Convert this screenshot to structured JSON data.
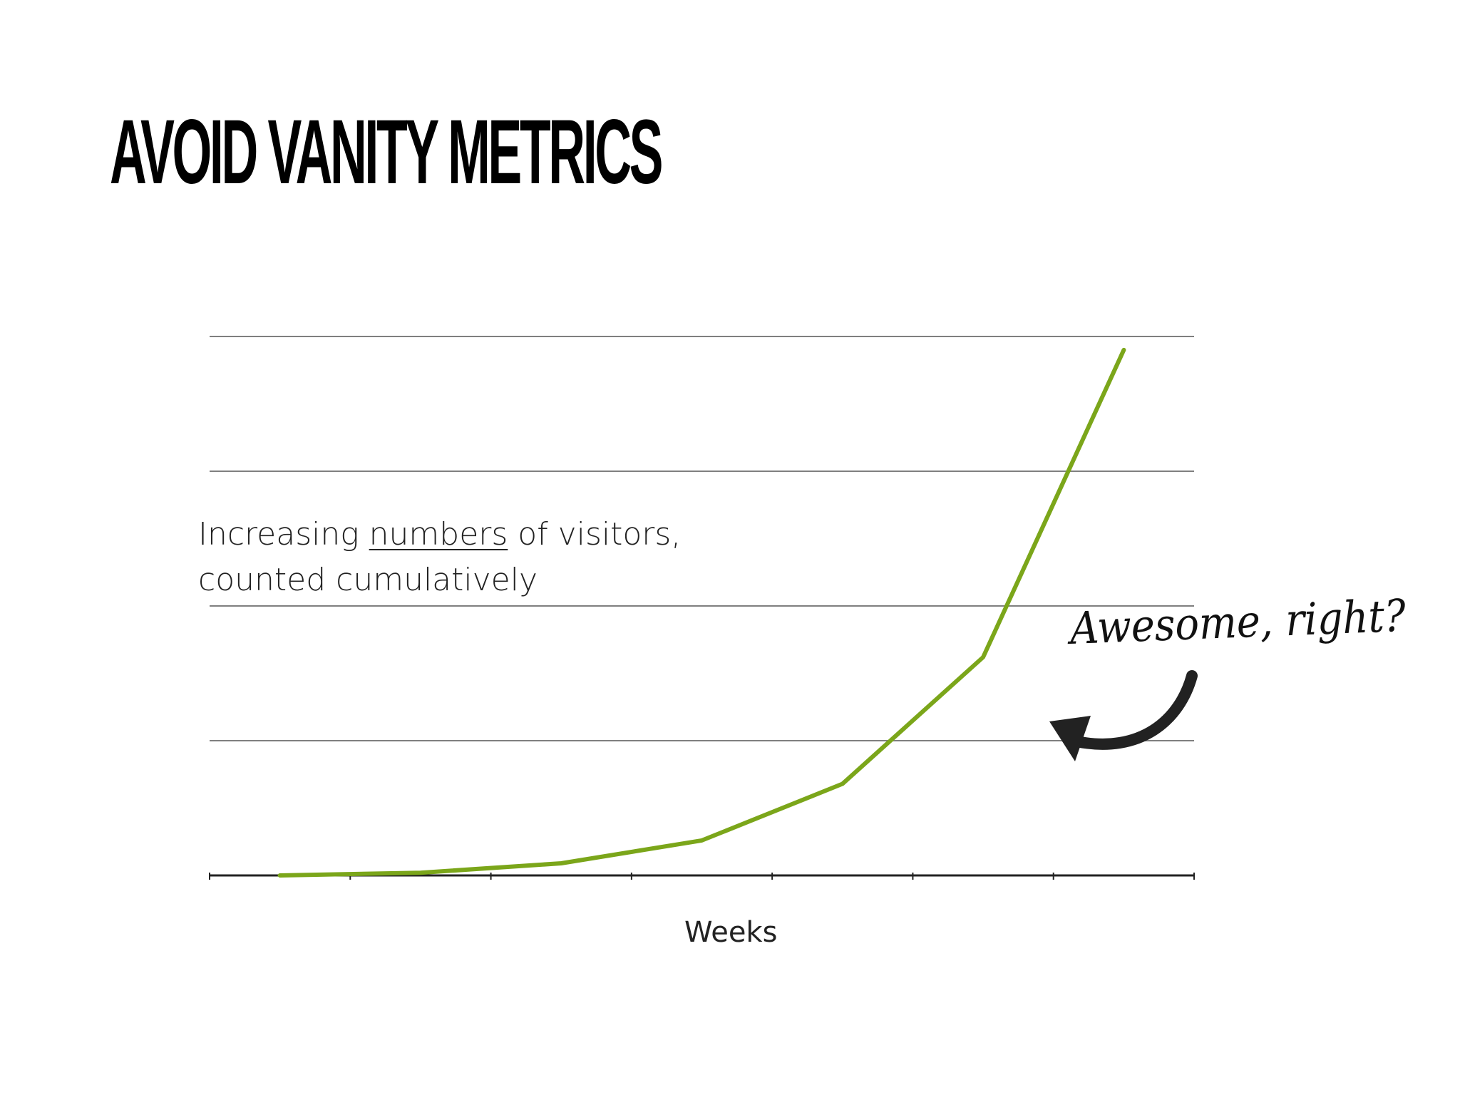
{
  "slide": {
    "title": "AVOID VANITY METRICS",
    "annotation": {
      "prefix": "Increasing ",
      "underlined": "numbers",
      "suffix": " of visitors,",
      "line2": "counted cumulatively"
    },
    "handwritten_note": "Awesome, right?"
  },
  "colors": {
    "line": "#7ba61a",
    "gridline": "#7f7f7f",
    "axis": "#222222",
    "arrow": "#222222"
  },
  "chart_data": {
    "type": "line",
    "title": "",
    "xlabel": "Weeks",
    "ylabel": "",
    "x": [
      1,
      2,
      3,
      4,
      5,
      6,
      7
    ],
    "series": [
      {
        "values": [
          0.0,
          0.2,
          0.9,
          2.6,
          6.8,
          16.2,
          39.0
        ]
      }
    ],
    "xlim": [
      0.5,
      7.5
    ],
    "ylim": [
      0,
      40
    ],
    "yticks": [
      0,
      10,
      20,
      30,
      40
    ],
    "x_tick_count": 8,
    "grid": true,
    "legend": "none"
  }
}
